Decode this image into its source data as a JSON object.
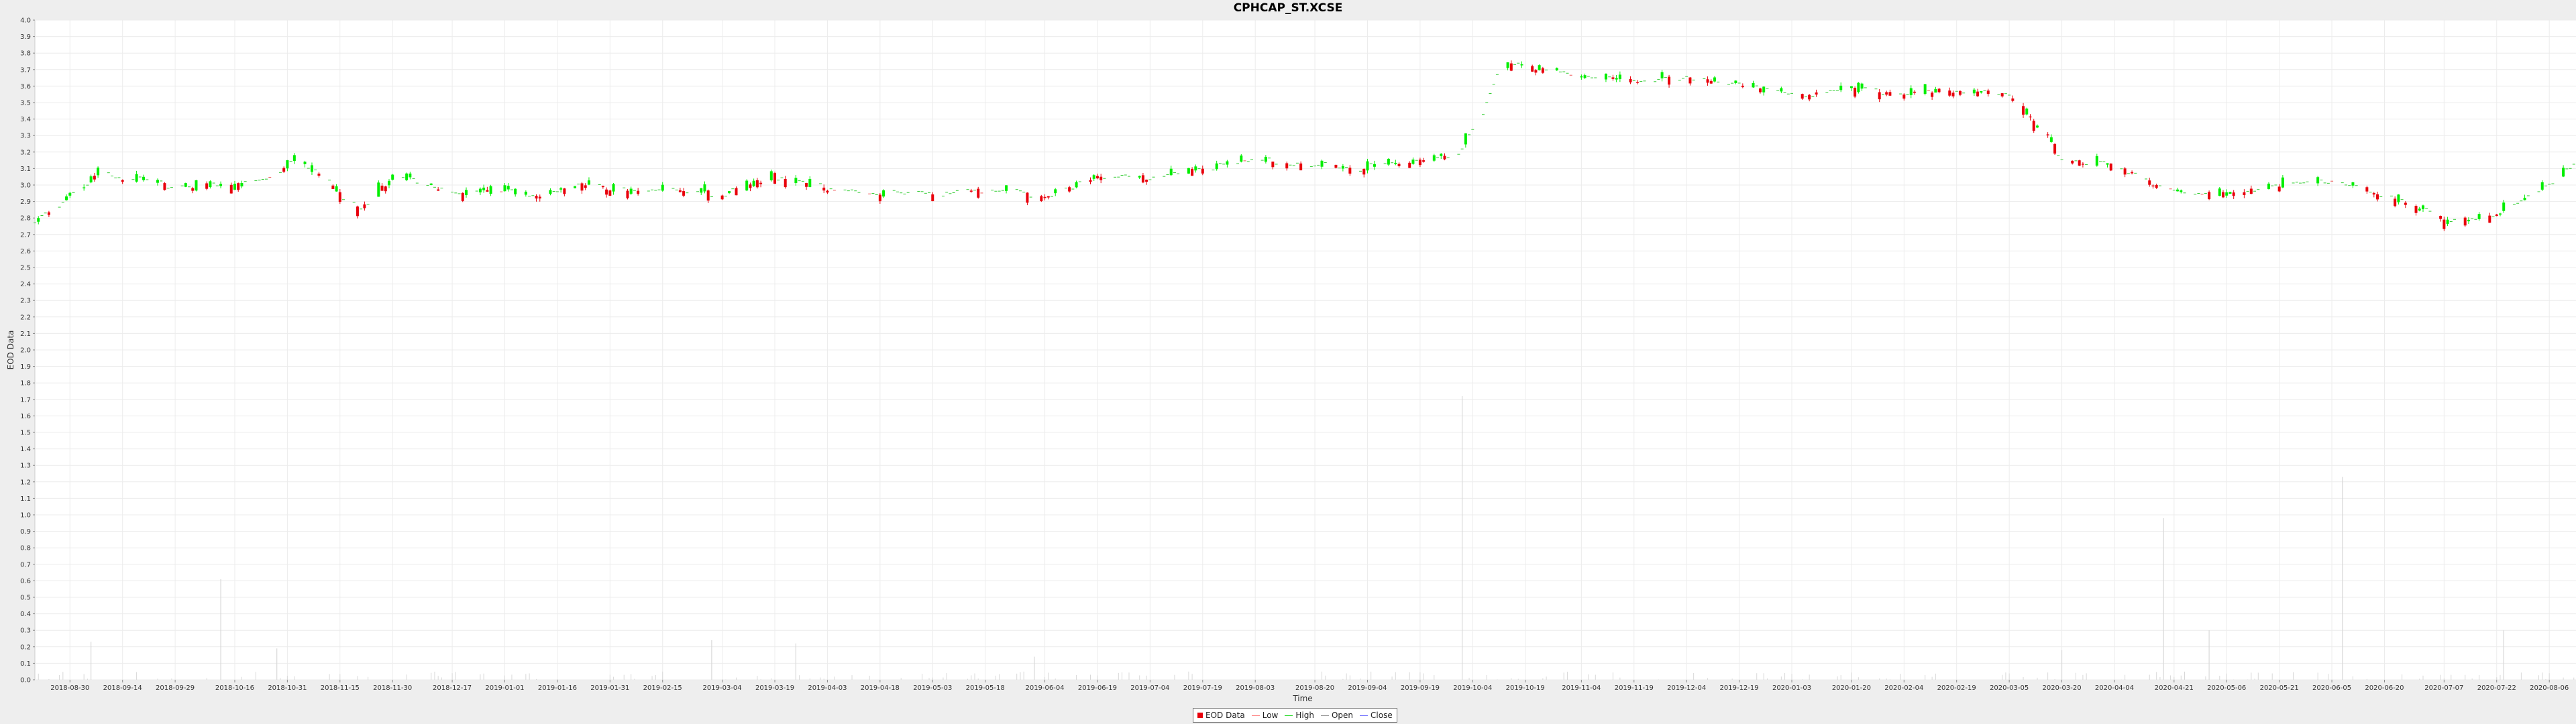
{
  "chart_data": {
    "type": "candlestick",
    "title": "CPHCAP_ST.XCSE",
    "xlabel": "Time",
    "ylabel": "EOD Data",
    "ylim": [
      0.0,
      4.0
    ],
    "y_tick_step": 0.1,
    "x_start": "2018-08-20",
    "x_end": "2020-08-14",
    "x_tick_labels": [
      "2018-08-30",
      "2018-09-14",
      "2018-09-29",
      "2018-10-16",
      "2018-10-31",
      "2018-11-15",
      "2018-11-30",
      "2018-12-17",
      "2019-01-01",
      "2019-01-16",
      "2019-01-31",
      "2019-02-15",
      "2019-03-04",
      "2019-03-19",
      "2019-04-03",
      "2019-04-18",
      "2019-05-03",
      "2019-05-18",
      "2019-06-04",
      "2019-06-19",
      "2019-07-04",
      "2019-07-19",
      "2019-08-03",
      "2019-08-20",
      "2019-09-04",
      "2019-09-19",
      "2019-10-04",
      "2019-10-19",
      "2019-11-04",
      "2019-11-19",
      "2019-12-04",
      "2019-12-19",
      "2020-01-03",
      "2020-01-20",
      "2020-02-04",
      "2020-02-19",
      "2020-03-05",
      "2020-03-20",
      "2020-04-04",
      "2020-04-21",
      "2020-05-06",
      "2020-05-21",
      "2020-06-05",
      "2020-06-20",
      "2020-07-07",
      "2020-07-22",
      "2020-08-06"
    ],
    "grid": true,
    "legend_position": "bottom-center",
    "legend": [
      {
        "label": "EOD Data",
        "kind": "box",
        "color": "#e8000b"
      },
      {
        "label": "Low",
        "kind": "line",
        "color": "#ff8a8a"
      },
      {
        "label": "High",
        "kind": "line",
        "color": "#33dd33"
      },
      {
        "label": "Open",
        "kind": "line",
        "color": "#999999"
      },
      {
        "label": "Close",
        "kind": "line",
        "color": "#7777ff"
      }
    ],
    "colors": {
      "up": "#00ee00",
      "down": "#e8000b",
      "volume": "#d8d8d8",
      "grid": "#ececec"
    },
    "price_anchors": [
      [
        "2018-08-20",
        2.78
      ],
      [
        "2018-08-30",
        2.93
      ],
      [
        "2018-09-08",
        3.08
      ],
      [
        "2018-09-14",
        3.03
      ],
      [
        "2018-09-22",
        3.02
      ],
      [
        "2018-10-05",
        2.98
      ],
      [
        "2018-10-16",
        3.0
      ],
      [
        "2018-10-25",
        3.05
      ],
      [
        "2018-11-02",
        3.15
      ],
      [
        "2018-11-12",
        3.0
      ],
      [
        "2018-11-20",
        2.85
      ],
      [
        "2018-11-30",
        3.05
      ],
      [
        "2018-12-17",
        2.95
      ],
      [
        "2019-01-01",
        2.95
      ],
      [
        "2019-01-10",
        2.92
      ],
      [
        "2019-01-22",
        3.02
      ],
      [
        "2019-01-31",
        2.97
      ],
      [
        "2019-02-15",
        2.97
      ],
      [
        "2019-03-04",
        2.95
      ],
      [
        "2019-03-19",
        3.05
      ],
      [
        "2019-04-03",
        2.98
      ],
      [
        "2019-04-18",
        2.95
      ],
      [
        "2019-05-03",
        2.95
      ],
      [
        "2019-05-18",
        2.97
      ],
      [
        "2019-06-04",
        2.93
      ],
      [
        "2019-06-19",
        3.05
      ],
      [
        "2019-07-04",
        3.05
      ],
      [
        "2019-07-19",
        3.1
      ],
      [
        "2019-08-03",
        3.15
      ],
      [
        "2019-08-20",
        3.12
      ],
      [
        "2019-09-04",
        3.1
      ],
      [
        "2019-09-19",
        3.15
      ],
      [
        "2019-09-30",
        3.2
      ],
      [
        "2019-10-04",
        3.35
      ],
      [
        "2019-10-12",
        3.75
      ],
      [
        "2019-10-22",
        3.72
      ],
      [
        "2019-11-04",
        3.65
      ],
      [
        "2019-11-19",
        3.63
      ],
      [
        "2019-12-04",
        3.65
      ],
      [
        "2019-12-19",
        3.6
      ],
      [
        "2020-01-03",
        3.55
      ],
      [
        "2020-01-20",
        3.58
      ],
      [
        "2020-02-04",
        3.55
      ],
      [
        "2020-02-19",
        3.58
      ],
      [
        "2020-03-05",
        3.55
      ],
      [
        "2020-03-15",
        3.3
      ],
      [
        "2020-03-20",
        3.15
      ],
      [
        "2020-04-04",
        3.12
      ],
      [
        "2020-04-21",
        2.95
      ],
      [
        "2020-05-06",
        2.95
      ],
      [
        "2020-05-21",
        3.0
      ],
      [
        "2020-06-05",
        3.02
      ],
      [
        "2020-06-20",
        2.95
      ],
      [
        "2020-07-07",
        2.78
      ],
      [
        "2020-07-22",
        2.82
      ],
      [
        "2020-08-06",
        3.0
      ],
      [
        "2020-08-14",
        3.15
      ]
    ],
    "volume_spikes": [
      [
        "2018-09-05",
        0.23
      ],
      [
        "2018-10-12",
        0.61
      ],
      [
        "2018-10-28",
        0.19
      ],
      [
        "2019-03-01",
        0.24
      ],
      [
        "2019-03-25",
        0.22
      ],
      [
        "2019-06-01",
        0.14
      ],
      [
        "2019-10-01",
        1.72
      ],
      [
        "2020-03-20",
        0.18
      ],
      [
        "2020-04-18",
        0.98
      ],
      [
        "2020-05-01",
        0.3
      ],
      [
        "2020-06-08",
        1.23
      ],
      [
        "2020-07-24",
        0.3
      ]
    ]
  }
}
